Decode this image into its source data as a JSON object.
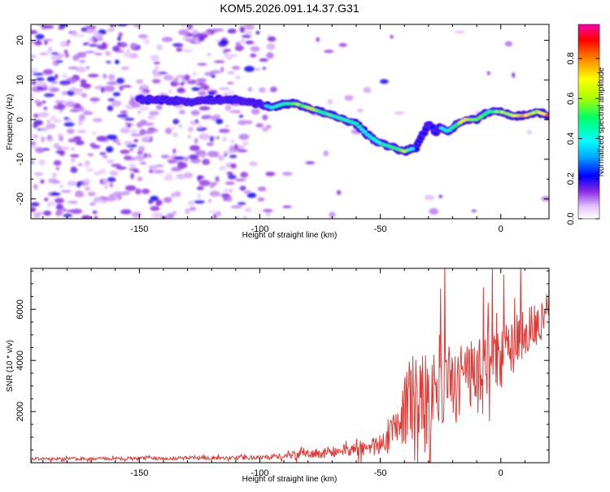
{
  "page": {
    "title": "KOM5.2026.091.14.37.G31"
  },
  "chart_data": [
    {
      "type": "heatmap",
      "name": "spectrogram",
      "title": "KOM5.2026.091.14.37.G31",
      "xlabel": "Height of straight line (km)",
      "ylabel": "Frequency (Hz)",
      "xlim": [
        -195,
        20
      ],
      "ylim": [
        -25,
        24
      ],
      "xticks": [
        -150,
        -100,
        -50,
        0
      ],
      "yticks": [
        -20,
        -10,
        0,
        10,
        20
      ],
      "colorbar": {
        "label": "Normalized spectral amplitude",
        "range": [
          0,
          0.97
        ],
        "ticks": [
          "0.0",
          "0.2",
          "0.4",
          "0.6",
          "0.8"
        ],
        "colors": [
          "#ffffff",
          "#e6c8ff",
          "#8a2be2",
          "#0000ff",
          "#00aaff",
          "#00ffff",
          "#00ff66",
          "#aaff00",
          "#ffff00",
          "#ff8800",
          "#ff0000",
          "#ff00aa"
        ]
      },
      "trace": {
        "x": [
          -150,
          -140,
          -130,
          -120,
          -110,
          -100,
          -95,
          -90,
          -85,
          -80,
          -75,
          -70,
          -65,
          -60,
          -55,
          -50,
          -45,
          -40,
          -35,
          -30,
          -27,
          -25,
          -22,
          -20,
          -15,
          -10,
          -5,
          0,
          5,
          10,
          15,
          20
        ],
        "y": [
          5,
          5,
          4.5,
          5,
          5,
          4,
          3,
          4,
          4,
          3,
          2,
          1,
          0,
          -1,
          -4,
          -6,
          -7,
          -8,
          -7,
          -1,
          -3,
          -2,
          -3,
          -2,
          0,
          0,
          2,
          2,
          1,
          1,
          2,
          1
        ],
        "amplitude": [
          0.25,
          0.28,
          0.3,
          0.3,
          0.3,
          0.35,
          0.45,
          0.55,
          0.6,
          0.7,
          0.6,
          0.55,
          0.5,
          0.5,
          0.45,
          0.5,
          0.55,
          0.7,
          0.3,
          0.25,
          0.3,
          0.4,
          0.5,
          0.55,
          0.85,
          0.6,
          0.5,
          0.65,
          0.7,
          0.8,
          0.65,
          0.9
        ]
      }
    },
    {
      "type": "line",
      "name": "snr",
      "xlabel": "Height of straight line (km)",
      "ylabel": "SNR (10 * v/v)",
      "xlim": [
        -195,
        20
      ],
      "ylim": [
        0,
        7600
      ],
      "xticks": [
        -150,
        -100,
        -50,
        0
      ],
      "yticks": [
        2000,
        4000,
        6000
      ],
      "color": "#e53935",
      "envelope": {
        "x": [
          -195,
          -150,
          -100,
          -80,
          -60,
          -50,
          -42,
          -38,
          -35,
          -30,
          -25,
          -20,
          -15,
          -10,
          -5,
          0,
          5,
          10,
          15,
          20
        ],
        "base": [
          150,
          170,
          200,
          350,
          500,
          800,
          1500,
          2500,
          2400,
          2500,
          2800,
          3000,
          3300,
          3600,
          3900,
          4200,
          4600,
          5000,
          5400,
          5800
        ],
        "amp": [
          80,
          90,
          120,
          250,
          400,
          700,
          1500,
          2300,
          2800,
          2500,
          2200,
          2100,
          2000,
          1900,
          1800,
          1700,
          1600,
          1500,
          1400,
          1300
        ]
      }
    }
  ]
}
